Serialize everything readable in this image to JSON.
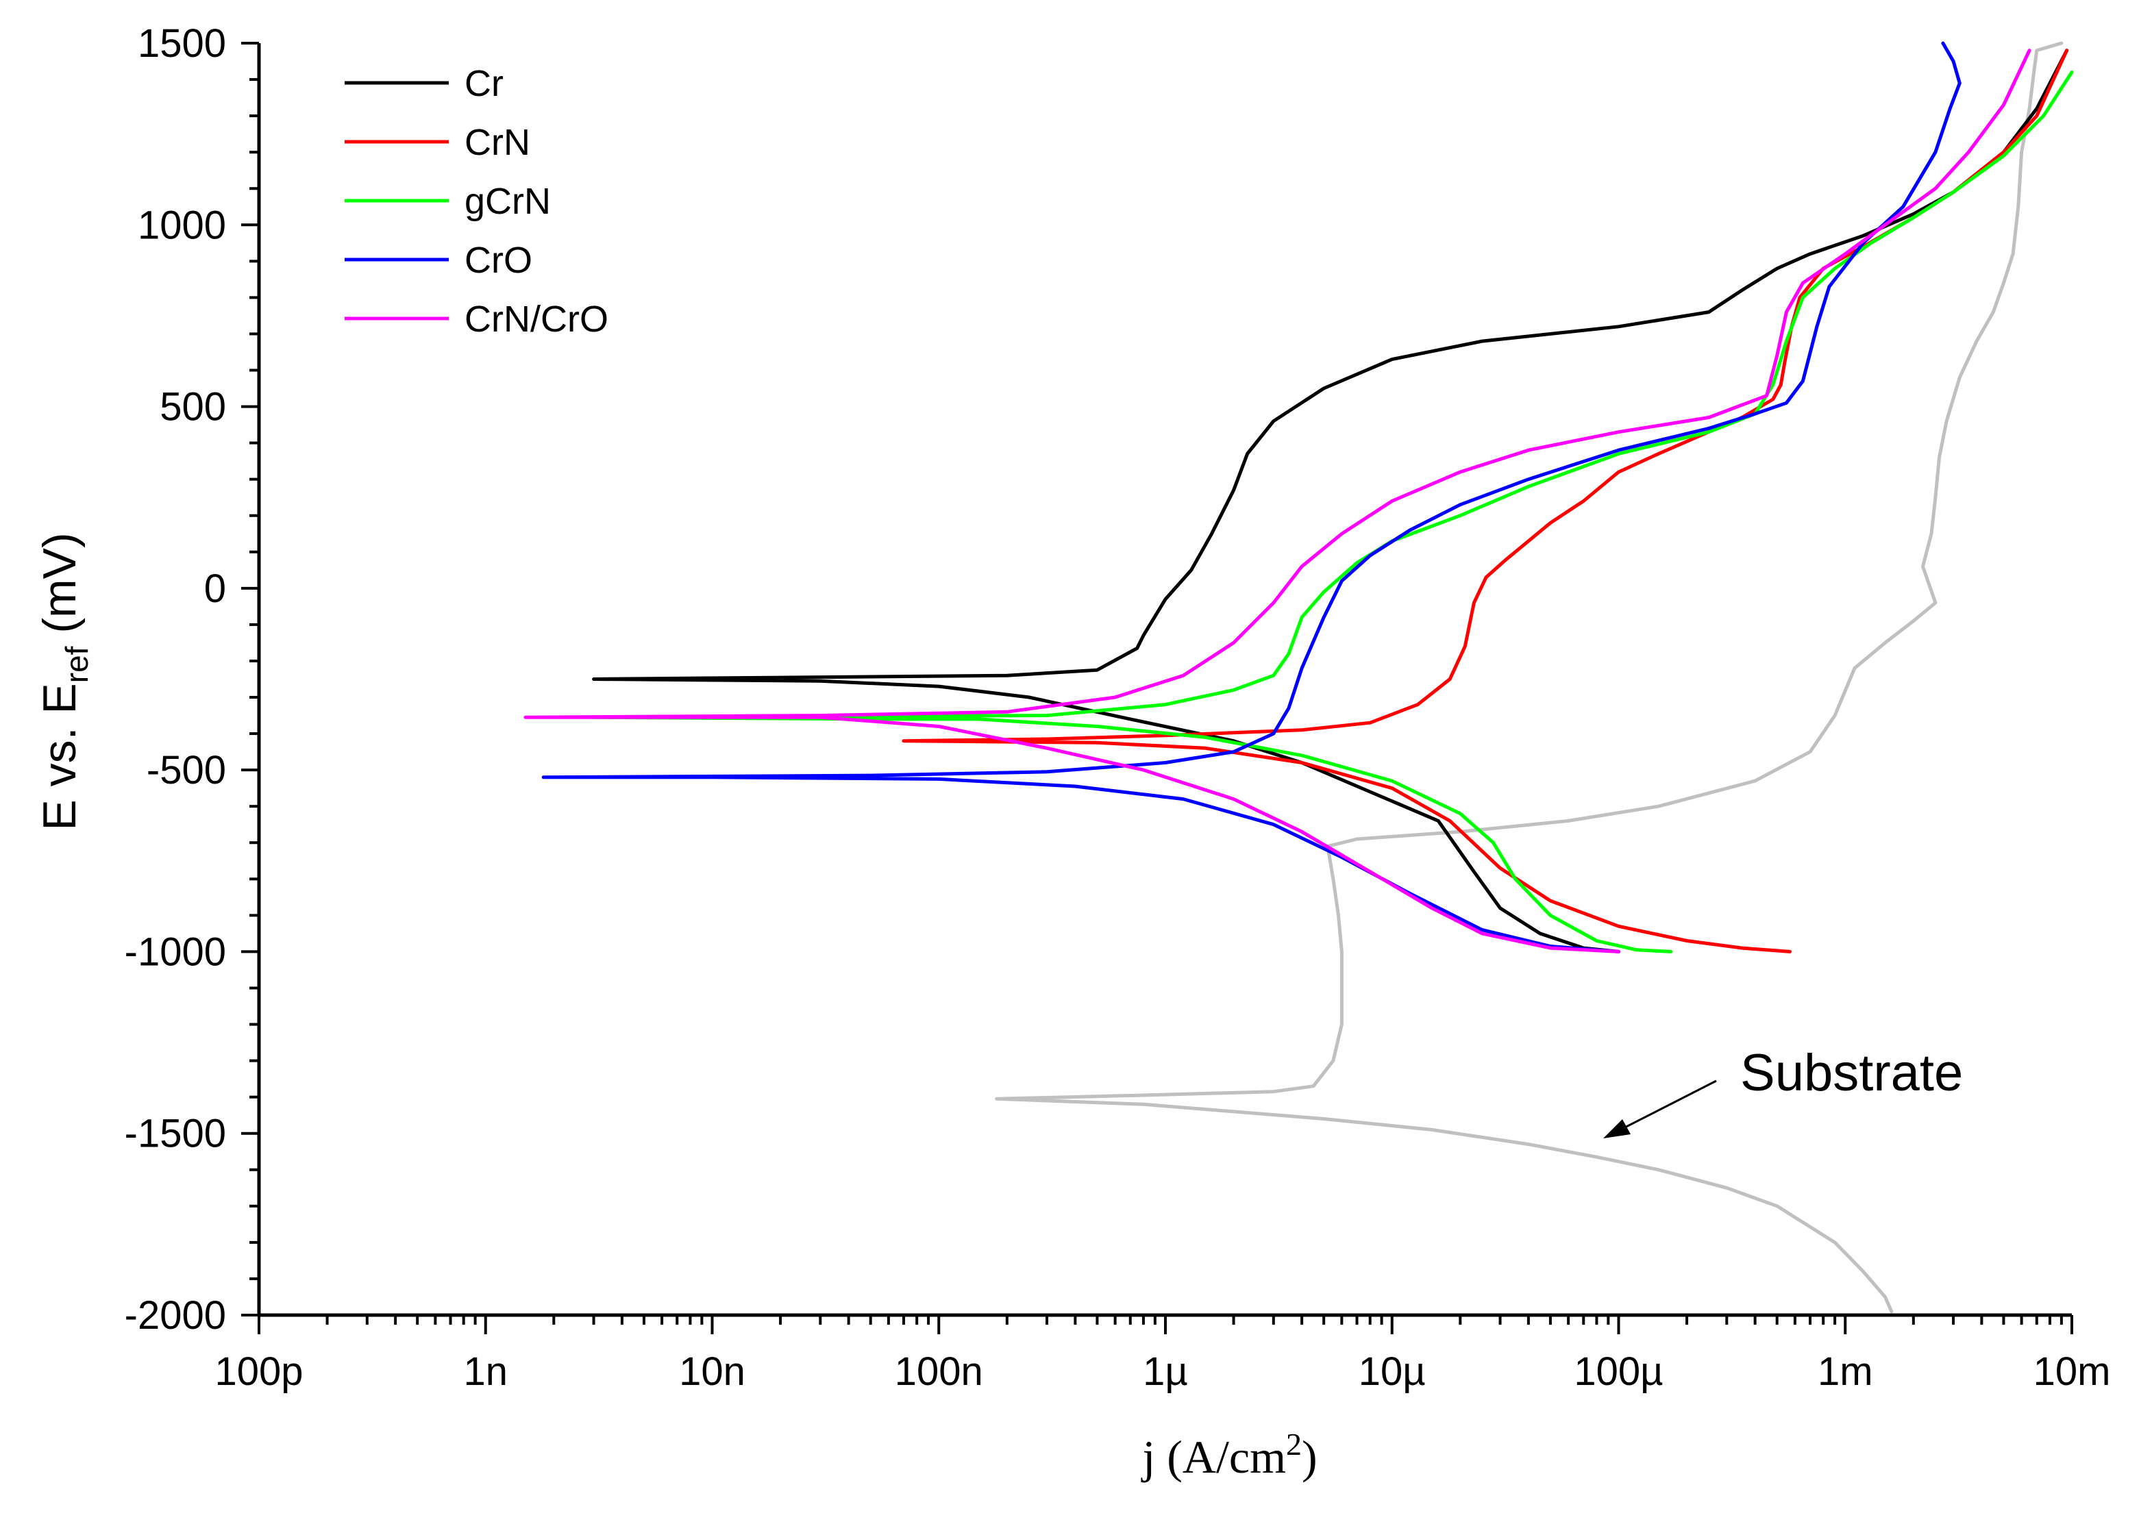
{
  "chart_data": {
    "type": "line",
    "title": "",
    "xlabel": "j (A/cm²)",
    "xlabel_parts": {
      "pre": "j (A/cm",
      "sup": "2",
      "post": ")"
    },
    "ylabel": "E vs. E_ref (mV)",
    "ylabel_parts": {
      "pre": "E vs. E",
      "sub": "ref",
      "post": " (mV)"
    },
    "x_scale": "log",
    "xlim": [
      1e-10,
      0.01
    ],
    "ylim": [
      -2000,
      1500
    ],
    "x_ticks": [
      {
        "value": 1e-10,
        "label": "100p"
      },
      {
        "value": 1e-09,
        "label": "1n"
      },
      {
        "value": 1e-08,
        "label": "10n"
      },
      {
        "value": 1e-07,
        "label": "100n"
      },
      {
        "value": 1e-06,
        "label": "1µ"
      },
      {
        "value": 1e-05,
        "label": "10µ"
      },
      {
        "value": 0.0001,
        "label": "100µ"
      },
      {
        "value": 0.001,
        "label": "1m"
      },
      {
        "value": 0.01,
        "label": "10m"
      }
    ],
    "y_ticks": [
      {
        "value": 1500,
        "label": "1500"
      },
      {
        "value": 1000,
        "label": "1000"
      },
      {
        "value": 500,
        "label": "500"
      },
      {
        "value": 0,
        "label": "0"
      },
      {
        "value": -500,
        "label": "-500"
      },
      {
        "value": -1000,
        "label": "-1000"
      },
      {
        "value": -1500,
        "label": "-1500"
      },
      {
        "value": -2000,
        "label": "-2000"
      }
    ],
    "legend_position": "top-left",
    "annotation": {
      "text": "Substrate",
      "arrow_to": [
        0.0013,
        -1500
      ]
    },
    "series": [
      {
        "name": "Cr",
        "color": "#000000",
        "in_legend": true,
        "points": [
          [
            0.0001,
            -1000
          ],
          [
            7e-05,
            -990
          ],
          [
            4.5e-05,
            -950
          ],
          [
            3e-05,
            -880
          ],
          [
            2.3e-05,
            -780
          ],
          [
            1.6e-05,
            -640
          ],
          [
            8e-06,
            -560
          ],
          [
            4e-06,
            -480
          ],
          [
            2e-06,
            -420
          ],
          [
            7e-07,
            -360
          ],
          [
            2.5e-07,
            -300
          ],
          [
            1e-07,
            -270
          ],
          [
            3e-08,
            -255
          ],
          [
            3e-09,
            -250
          ],
          [
            2e-07,
            -240
          ],
          [
            5e-07,
            -225
          ],
          [
            7.5e-07,
            -165
          ],
          [
            8e-07,
            -130
          ],
          [
            1e-06,
            -30
          ],
          [
            1.3e-06,
            50
          ],
          [
            1.6e-06,
            150
          ],
          [
            2e-06,
            270
          ],
          [
            2.3e-06,
            370
          ],
          [
            3e-06,
            460
          ],
          [
            5e-06,
            550
          ],
          [
            1e-05,
            630
          ],
          [
            2.5e-05,
            680
          ],
          [
            0.0001,
            720
          ],
          [
            0.00025,
            760
          ],
          [
            0.00035,
            820
          ],
          [
            0.0005,
            880
          ],
          [
            0.0007,
            920
          ],
          [
            0.0012,
            970
          ],
          [
            0.002,
            1030
          ],
          [
            0.003,
            1090
          ],
          [
            0.005,
            1200
          ],
          [
            0.007,
            1320
          ],
          [
            0.0095,
            1480
          ]
        ]
      },
      {
        "name": "CrN",
        "color": "#ff0000",
        "in_legend": true,
        "points": [
          [
            0.00057,
            -1000
          ],
          [
            0.00035,
            -990
          ],
          [
            0.0002,
            -970
          ],
          [
            0.0001,
            -930
          ],
          [
            5e-05,
            -860
          ],
          [
            3e-05,
            -770
          ],
          [
            1.8e-05,
            -640
          ],
          [
            1e-05,
            -550
          ],
          [
            4e-06,
            -480
          ],
          [
            1.5e-06,
            -440
          ],
          [
            5e-07,
            -425
          ],
          [
            7e-08,
            -420
          ],
          [
            3e-07,
            -415
          ],
          [
            1e-06,
            -405
          ],
          [
            4e-06,
            -390
          ],
          [
            8e-06,
            -370
          ],
          [
            1.3e-05,
            -320
          ],
          [
            1.8e-05,
            -250
          ],
          [
            2.1e-05,
            -160
          ],
          [
            2.3e-05,
            -40
          ],
          [
            2.6e-05,
            30
          ],
          [
            3.2e-05,
            80
          ],
          [
            4e-05,
            130
          ],
          [
            5e-05,
            180
          ],
          [
            7e-05,
            240
          ],
          [
            0.0001,
            320
          ],
          [
            0.00015,
            370
          ],
          [
            0.00035,
            470
          ],
          [
            0.00048,
            520
          ],
          [
            0.00052,
            560
          ],
          [
            0.00054,
            620
          ],
          [
            0.00058,
            720
          ],
          [
            0.00063,
            800
          ],
          [
            0.0008,
            880
          ],
          [
            0.0012,
            940
          ],
          [
            0.002,
            1020
          ],
          [
            0.003,
            1090
          ],
          [
            0.005,
            1200
          ],
          [
            0.007,
            1300
          ],
          [
            0.0095,
            1480
          ]
        ]
      },
      {
        "name": "gCrN",
        "color": "#00ff00",
        "in_legend": true,
        "points": [
          [
            0.00017,
            -1000
          ],
          [
            0.00012,
            -995
          ],
          [
            8e-05,
            -970
          ],
          [
            5e-05,
            -900
          ],
          [
            3.5e-05,
            -800
          ],
          [
            2.8e-05,
            -700
          ],
          [
            2e-05,
            -620
          ],
          [
            1e-05,
            -530
          ],
          [
            4e-06,
            -460
          ],
          [
            1.5e-06,
            -410
          ],
          [
            5e-07,
            -380
          ],
          [
            1.5e-07,
            -360
          ],
          [
            5e-08,
            -360
          ],
          [
            3e-09,
            -355
          ],
          [
            3e-07,
            -350
          ],
          [
            1e-06,
            -320
          ],
          [
            2e-06,
            -280
          ],
          [
            3e-06,
            -240
          ],
          [
            3.5e-06,
            -180
          ],
          [
            4e-06,
            -80
          ],
          [
            5e-06,
            -10
          ],
          [
            7e-06,
            70
          ],
          [
            1e-05,
            130
          ],
          [
            2e-05,
            200
          ],
          [
            4e-05,
            280
          ],
          [
            0.0001,
            370
          ],
          [
            0.00025,
            430
          ],
          [
            0.0004,
            480
          ],
          [
            0.00048,
            560
          ],
          [
            0.00055,
            680
          ],
          [
            0.00065,
            800
          ],
          [
            0.0009,
            880
          ],
          [
            0.0013,
            950
          ],
          [
            0.002,
            1020
          ],
          [
            0.003,
            1090
          ],
          [
            0.005,
            1190
          ],
          [
            0.0075,
            1300
          ],
          [
            0.01,
            1420
          ]
        ]
      },
      {
        "name": "CrO",
        "color": "#0000ff",
        "in_legend": true,
        "points": [
          [
            0.0001,
            -1000
          ],
          [
            5e-05,
            -985
          ],
          [
            2.5e-05,
            -940
          ],
          [
            1.2e-05,
            -840
          ],
          [
            6e-06,
            -740
          ],
          [
            3e-06,
            -650
          ],
          [
            1.2e-06,
            -580
          ],
          [
            4e-07,
            -545
          ],
          [
            1e-07,
            -525
          ],
          [
            1e-08,
            -520
          ],
          [
            1.8e-09,
            -520
          ],
          [
            5e-08,
            -515
          ],
          [
            3e-07,
            -505
          ],
          [
            1e-06,
            -480
          ],
          [
            2e-06,
            -450
          ],
          [
            3e-06,
            -400
          ],
          [
            3.5e-06,
            -330
          ],
          [
            4e-06,
            -220
          ],
          [
            5e-06,
            -80
          ],
          [
            6e-06,
            20
          ],
          [
            8e-06,
            90
          ],
          [
            1.2e-05,
            160
          ],
          [
            2e-05,
            230
          ],
          [
            4e-05,
            300
          ],
          [
            0.0001,
            380
          ],
          [
            0.00025,
            440
          ],
          [
            0.0004,
            480
          ],
          [
            0.00055,
            510
          ],
          [
            0.00065,
            570
          ],
          [
            0.00075,
            720
          ],
          [
            0.00085,
            830
          ],
          [
            0.0012,
            950
          ],
          [
            0.0018,
            1050
          ],
          [
            0.0025,
            1200
          ],
          [
            0.0029,
            1320
          ],
          [
            0.0032,
            1390
          ],
          [
            0.003,
            1450
          ],
          [
            0.0027,
            1500
          ]
        ]
      },
      {
        "name": "CrN/CrO",
        "color": "#ff00ff",
        "in_legend": true,
        "points": [
          [
            0.0001,
            -1000
          ],
          [
            5e-05,
            -990
          ],
          [
            2.5e-05,
            -950
          ],
          [
            1.5e-05,
            -880
          ],
          [
            8e-06,
            -780
          ],
          [
            4e-06,
            -670
          ],
          [
            2e-06,
            -580
          ],
          [
            8e-07,
            -500
          ],
          [
            3e-07,
            -440
          ],
          [
            1e-07,
            -380
          ],
          [
            3e-08,
            -355
          ],
          [
            1.5e-09,
            -355
          ],
          [
            3e-08,
            -350
          ],
          [
            2e-07,
            -340
          ],
          [
            6e-07,
            -300
          ],
          [
            1.2e-06,
            -240
          ],
          [
            2e-06,
            -150
          ],
          [
            3e-06,
            -40
          ],
          [
            4e-06,
            60
          ],
          [
            6e-06,
            150
          ],
          [
            1e-05,
            240
          ],
          [
            2e-05,
            320
          ],
          [
            4e-05,
            380
          ],
          [
            0.0001,
            430
          ],
          [
            0.00025,
            470
          ],
          [
            0.00045,
            530
          ],
          [
            0.0005,
            640
          ],
          [
            0.00055,
            760
          ],
          [
            0.00065,
            840
          ],
          [
            0.001,
            920
          ],
          [
            0.0015,
            1000
          ],
          [
            0.0025,
            1100
          ],
          [
            0.0035,
            1200
          ],
          [
            0.005,
            1330
          ],
          [
            0.0065,
            1480
          ]
        ]
      },
      {
        "name": "Substrate",
        "color": "#c0c0c0",
        "in_legend": false,
        "points": [
          [
            0.0016,
            -1990
          ],
          [
            0.0015,
            -1950
          ],
          [
            0.0012,
            -1880
          ],
          [
            0.0009,
            -1800
          ],
          [
            0.0005,
            -1700
          ],
          [
            0.0003,
            -1650
          ],
          [
            0.00015,
            -1600
          ],
          [
            8e-05,
            -1565
          ],
          [
            4e-05,
            -1530
          ],
          [
            1.5e-05,
            -1490
          ],
          [
            5e-06,
            -1460
          ],
          [
            2e-06,
            -1440
          ],
          [
            8e-07,
            -1420
          ],
          [
            3e-07,
            -1410
          ],
          [
            1.8e-07,
            -1405
          ],
          [
            8e-07,
            -1395
          ],
          [
            3e-06,
            -1385
          ],
          [
            4.5e-06,
            -1370
          ],
          [
            5.5e-06,
            -1300
          ],
          [
            6e-06,
            -1200
          ],
          [
            6e-06,
            -1000
          ],
          [
            5.8e-06,
            -900
          ],
          [
            5.5e-06,
            -800
          ],
          [
            5.2e-06,
            -710
          ],
          [
            7e-06,
            -690
          ],
          [
            2e-05,
            -670
          ],
          [
            6e-05,
            -640
          ],
          [
            0.00015,
            -600
          ],
          [
            0.0004,
            -530
          ],
          [
            0.0007,
            -450
          ],
          [
            0.0009,
            -350
          ],
          [
            0.0011,
            -220
          ],
          [
            0.0015,
            -150
          ],
          [
            0.002,
            -90
          ],
          [
            0.0025,
            -40
          ],
          [
            0.0022,
            60
          ],
          [
            0.0024,
            150
          ],
          [
            0.0025,
            250
          ],
          [
            0.0026,
            360
          ],
          [
            0.0028,
            460
          ],
          [
            0.0032,
            580
          ],
          [
            0.0038,
            680
          ],
          [
            0.0045,
            760
          ],
          [
            0.005,
            840
          ],
          [
            0.0055,
            920
          ],
          [
            0.0058,
            1050
          ],
          [
            0.006,
            1200
          ],
          [
            0.0065,
            1320
          ],
          [
            0.0068,
            1420
          ],
          [
            0.007,
            1480
          ],
          [
            0.009,
            1500
          ]
        ]
      }
    ]
  }
}
